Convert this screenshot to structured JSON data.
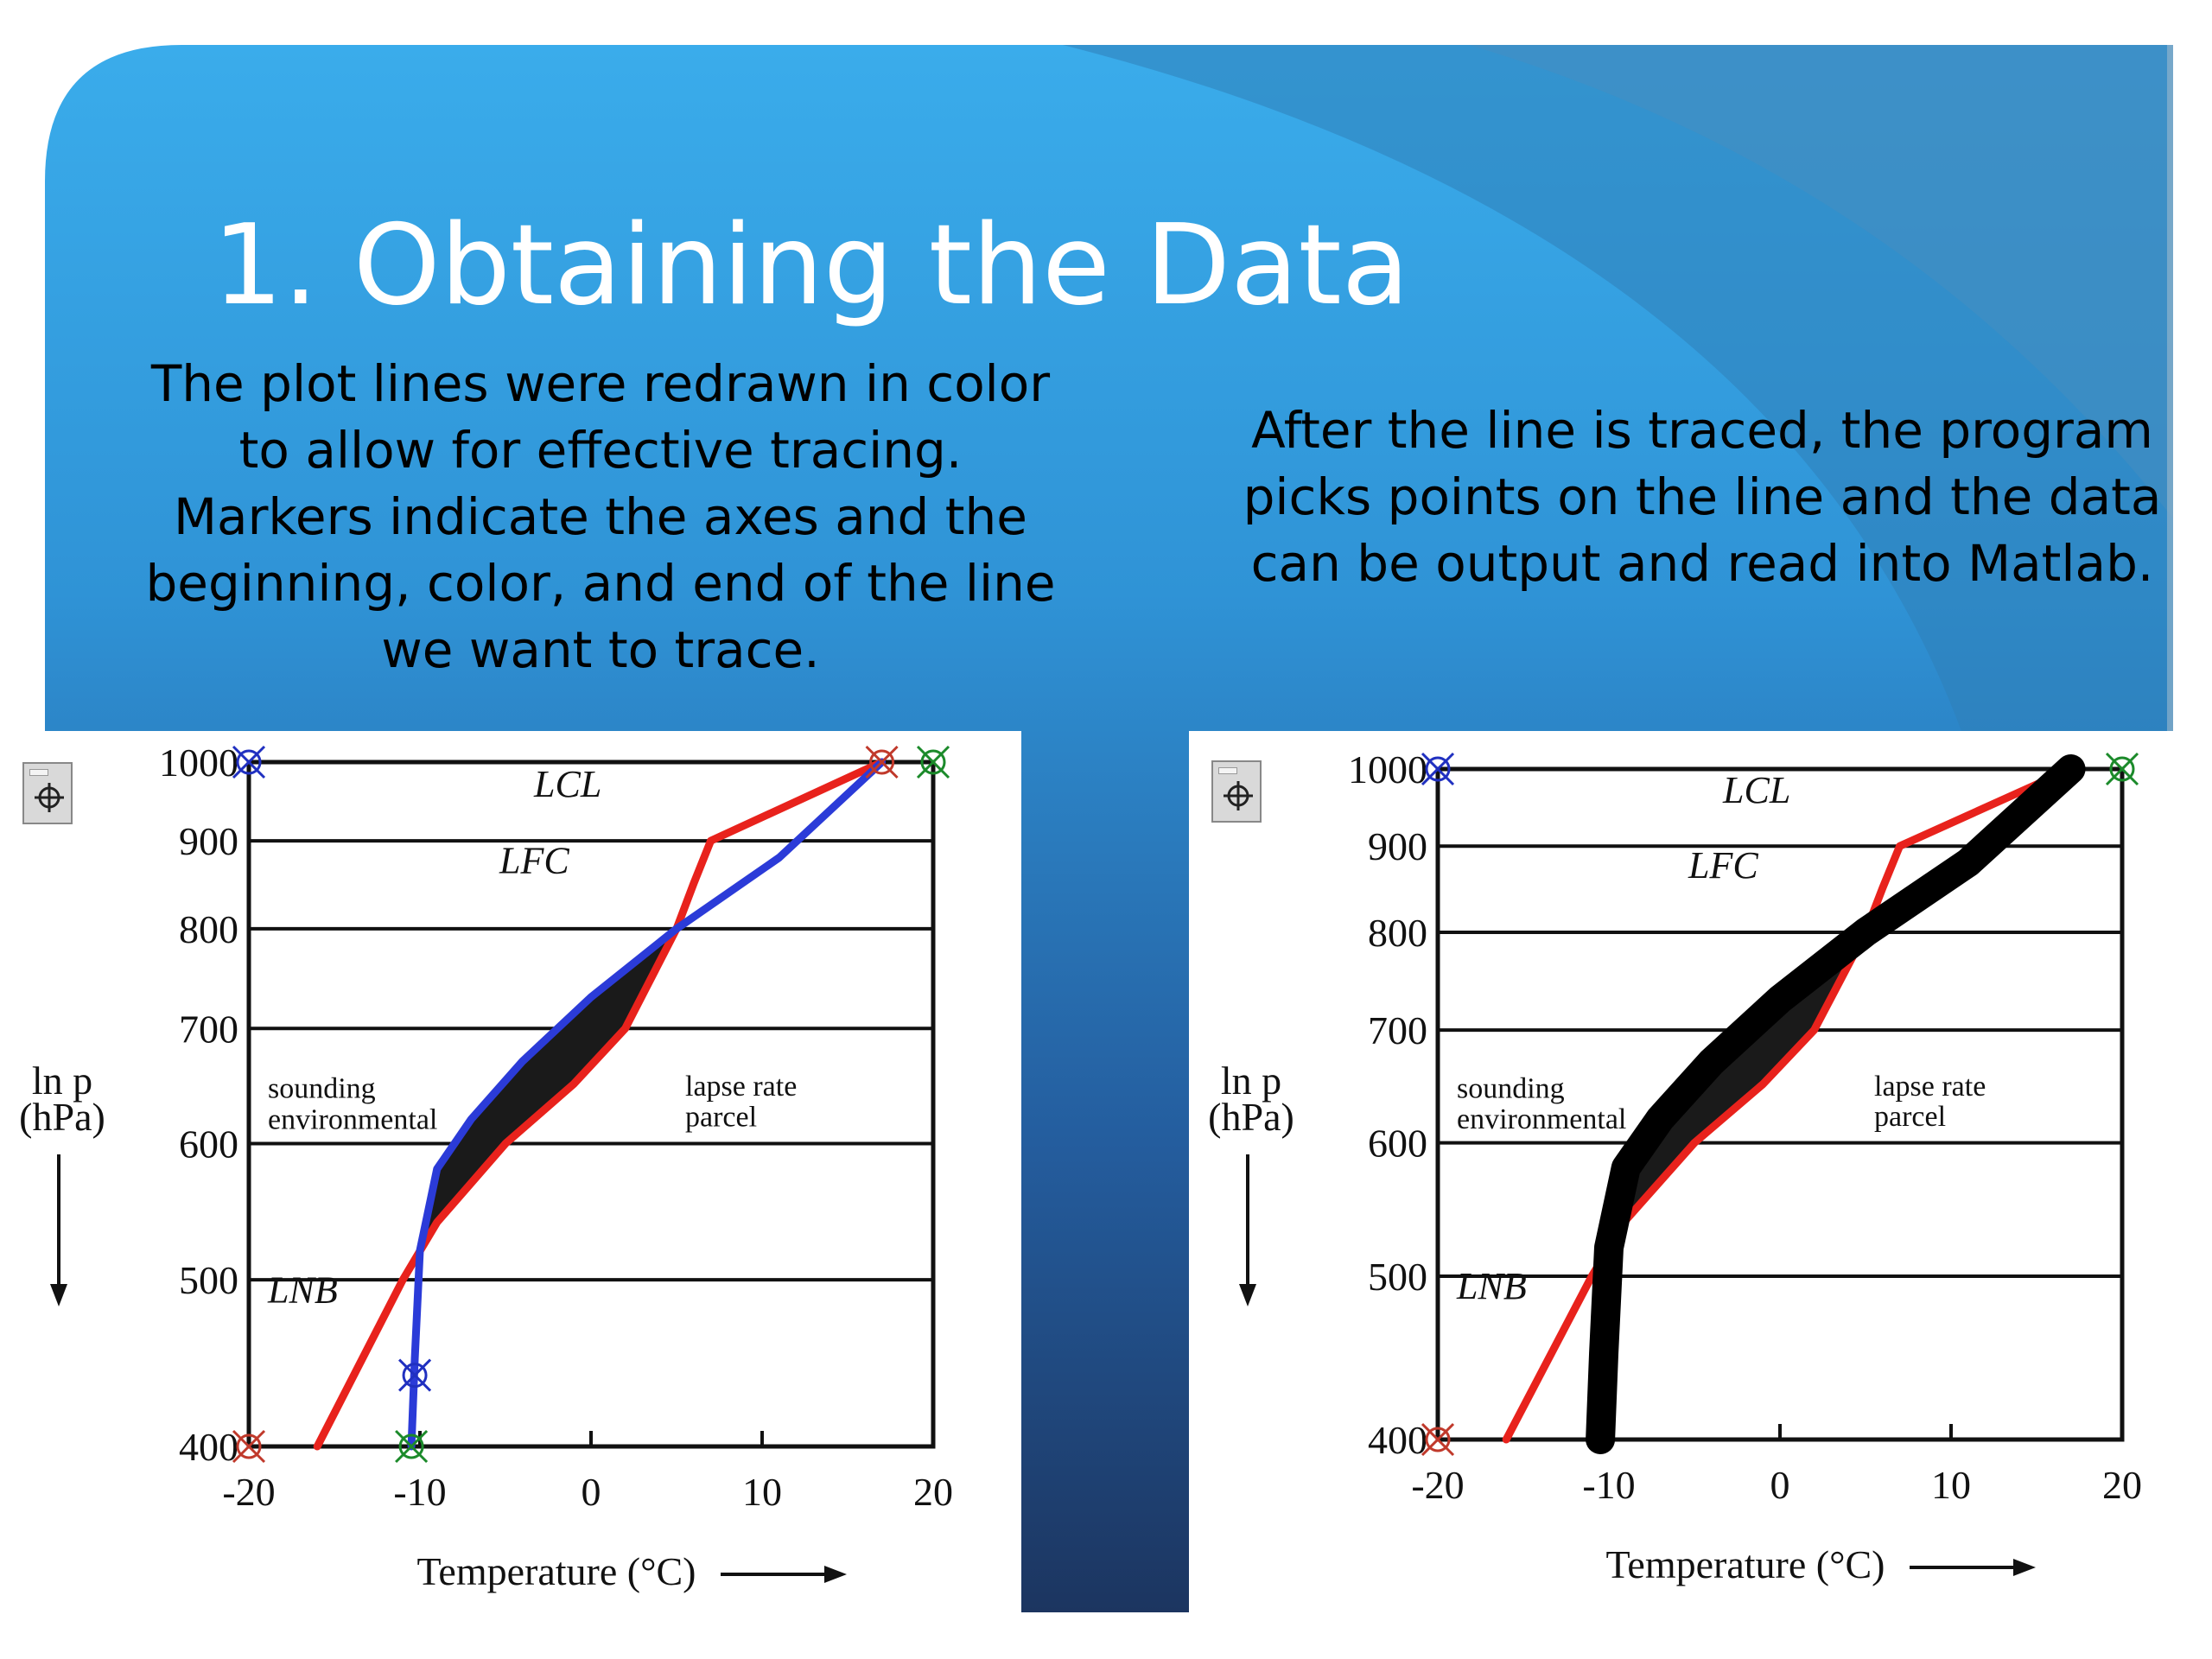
{
  "slide": {
    "title": "1. Obtaining the Data",
    "left_caption_lines": [
      "The plot lines were redrawn in color",
      "to allow for effective tracing.",
      "Markers indicate the axes and the",
      "beginning, color, and end of the line",
      "we want to trace."
    ],
    "right_caption_lines": [
      "After the line is traced, the program",
      "picks points on the line and the data",
      "can be output and read into Matlab."
    ],
    "colors": {
      "blue_light": "#3AACEB",
      "blue_dark": "#1C3560",
      "white": "#FFFFFF"
    }
  },
  "tools": {
    "icon": "crosshair-icon"
  },
  "chart_data": [
    {
      "type": "line",
      "panel": "left",
      "xlabel": "Temperature (°C)",
      "ylabel_line1": "ln p",
      "ylabel_line2": "(hPa)",
      "x_ticks": [
        "-20",
        "-10",
        "0",
        "10",
        "20"
      ],
      "y_ticks": [
        "400",
        "500",
        "600",
        "700",
        "800",
        "900",
        "1000"
      ],
      "xlim": [
        -20,
        20
      ],
      "ylim": [
        1000,
        400
      ],
      "y_scale": "log",
      "annotations": [
        "LNB",
        "environmental",
        "sounding",
        "parcel",
        "lapse rate",
        "LFC",
        "LCL"
      ],
      "series": [
        {
          "color": "#E8221C",
          "temperature": [
            -16,
            -11,
            -9,
            -5,
            -1,
            2,
            5,
            6,
            7,
            17
          ],
          "pressure": [
            400,
            500,
            540,
            600,
            650,
            700,
            800,
            850,
            900,
            1000
          ]
        },
        {
          "color": "#2B3BD8",
          "temperature": [
            -10.5,
            -10.3,
            -10,
            -9,
            -7,
            -4,
            0,
            5,
            11,
            17
          ],
          "pressure": [
            400,
            450,
            520,
            580,
            620,
            670,
            730,
            800,
            880,
            1000
          ]
        }
      ],
      "markers": [
        {
          "color": "#C0392B",
          "temperature": -20,
          "pressure": 400
        },
        {
          "color": "#1B8A2A",
          "temperature": -10.5,
          "pressure": 400
        },
        {
          "color": "#2030C0",
          "temperature": -10.3,
          "pressure": 440
        },
        {
          "color": "#2030C0",
          "temperature": -20,
          "pressure": 1000
        },
        {
          "color": "#C0392B",
          "temperature": 17,
          "pressure": 1000
        },
        {
          "color": "#1B8A2A",
          "temperature": 20,
          "pressure": 1000
        }
      ]
    },
    {
      "type": "line",
      "panel": "right",
      "xlabel": "Temperature (°C)",
      "ylabel_line1": "ln p",
      "ylabel_line2": "(hPa)",
      "x_ticks": [
        "-20",
        "-10",
        "0",
        "10",
        "20"
      ],
      "y_ticks": [
        "400",
        "500",
        "600",
        "700",
        "800",
        "900",
        "1000"
      ],
      "xlim": [
        -20,
        20
      ],
      "ylim": [
        1000,
        400
      ],
      "y_scale": "log",
      "annotations": [
        "LNB",
        "environmental",
        "sounding",
        "parcel",
        "lapse rate",
        "LFC",
        "LCL"
      ],
      "series": [
        {
          "color": "#E8221C",
          "temperature": [
            -16,
            -11,
            -9,
            -5,
            -1,
            2,
            5,
            6,
            7,
            17
          ],
          "pressure": [
            400,
            500,
            540,
            600,
            650,
            700,
            800,
            850,
            900,
            1000
          ]
        },
        {
          "color": "#000000",
          "temperature": [
            -10.5,
            -10.3,
            -10,
            -9,
            -7,
            -4,
            0,
            5,
            11,
            17
          ],
          "pressure": [
            400,
            450,
            520,
            580,
            620,
            670,
            730,
            800,
            880,
            1000
          ]
        }
      ],
      "markers": [
        {
          "color": "#C0392B",
          "temperature": -20,
          "pressure": 400
        },
        {
          "color": "#2030C0",
          "temperature": -20,
          "pressure": 1000
        },
        {
          "color": "#1B8A2A",
          "temperature": 20,
          "pressure": 1000
        }
      ]
    }
  ]
}
